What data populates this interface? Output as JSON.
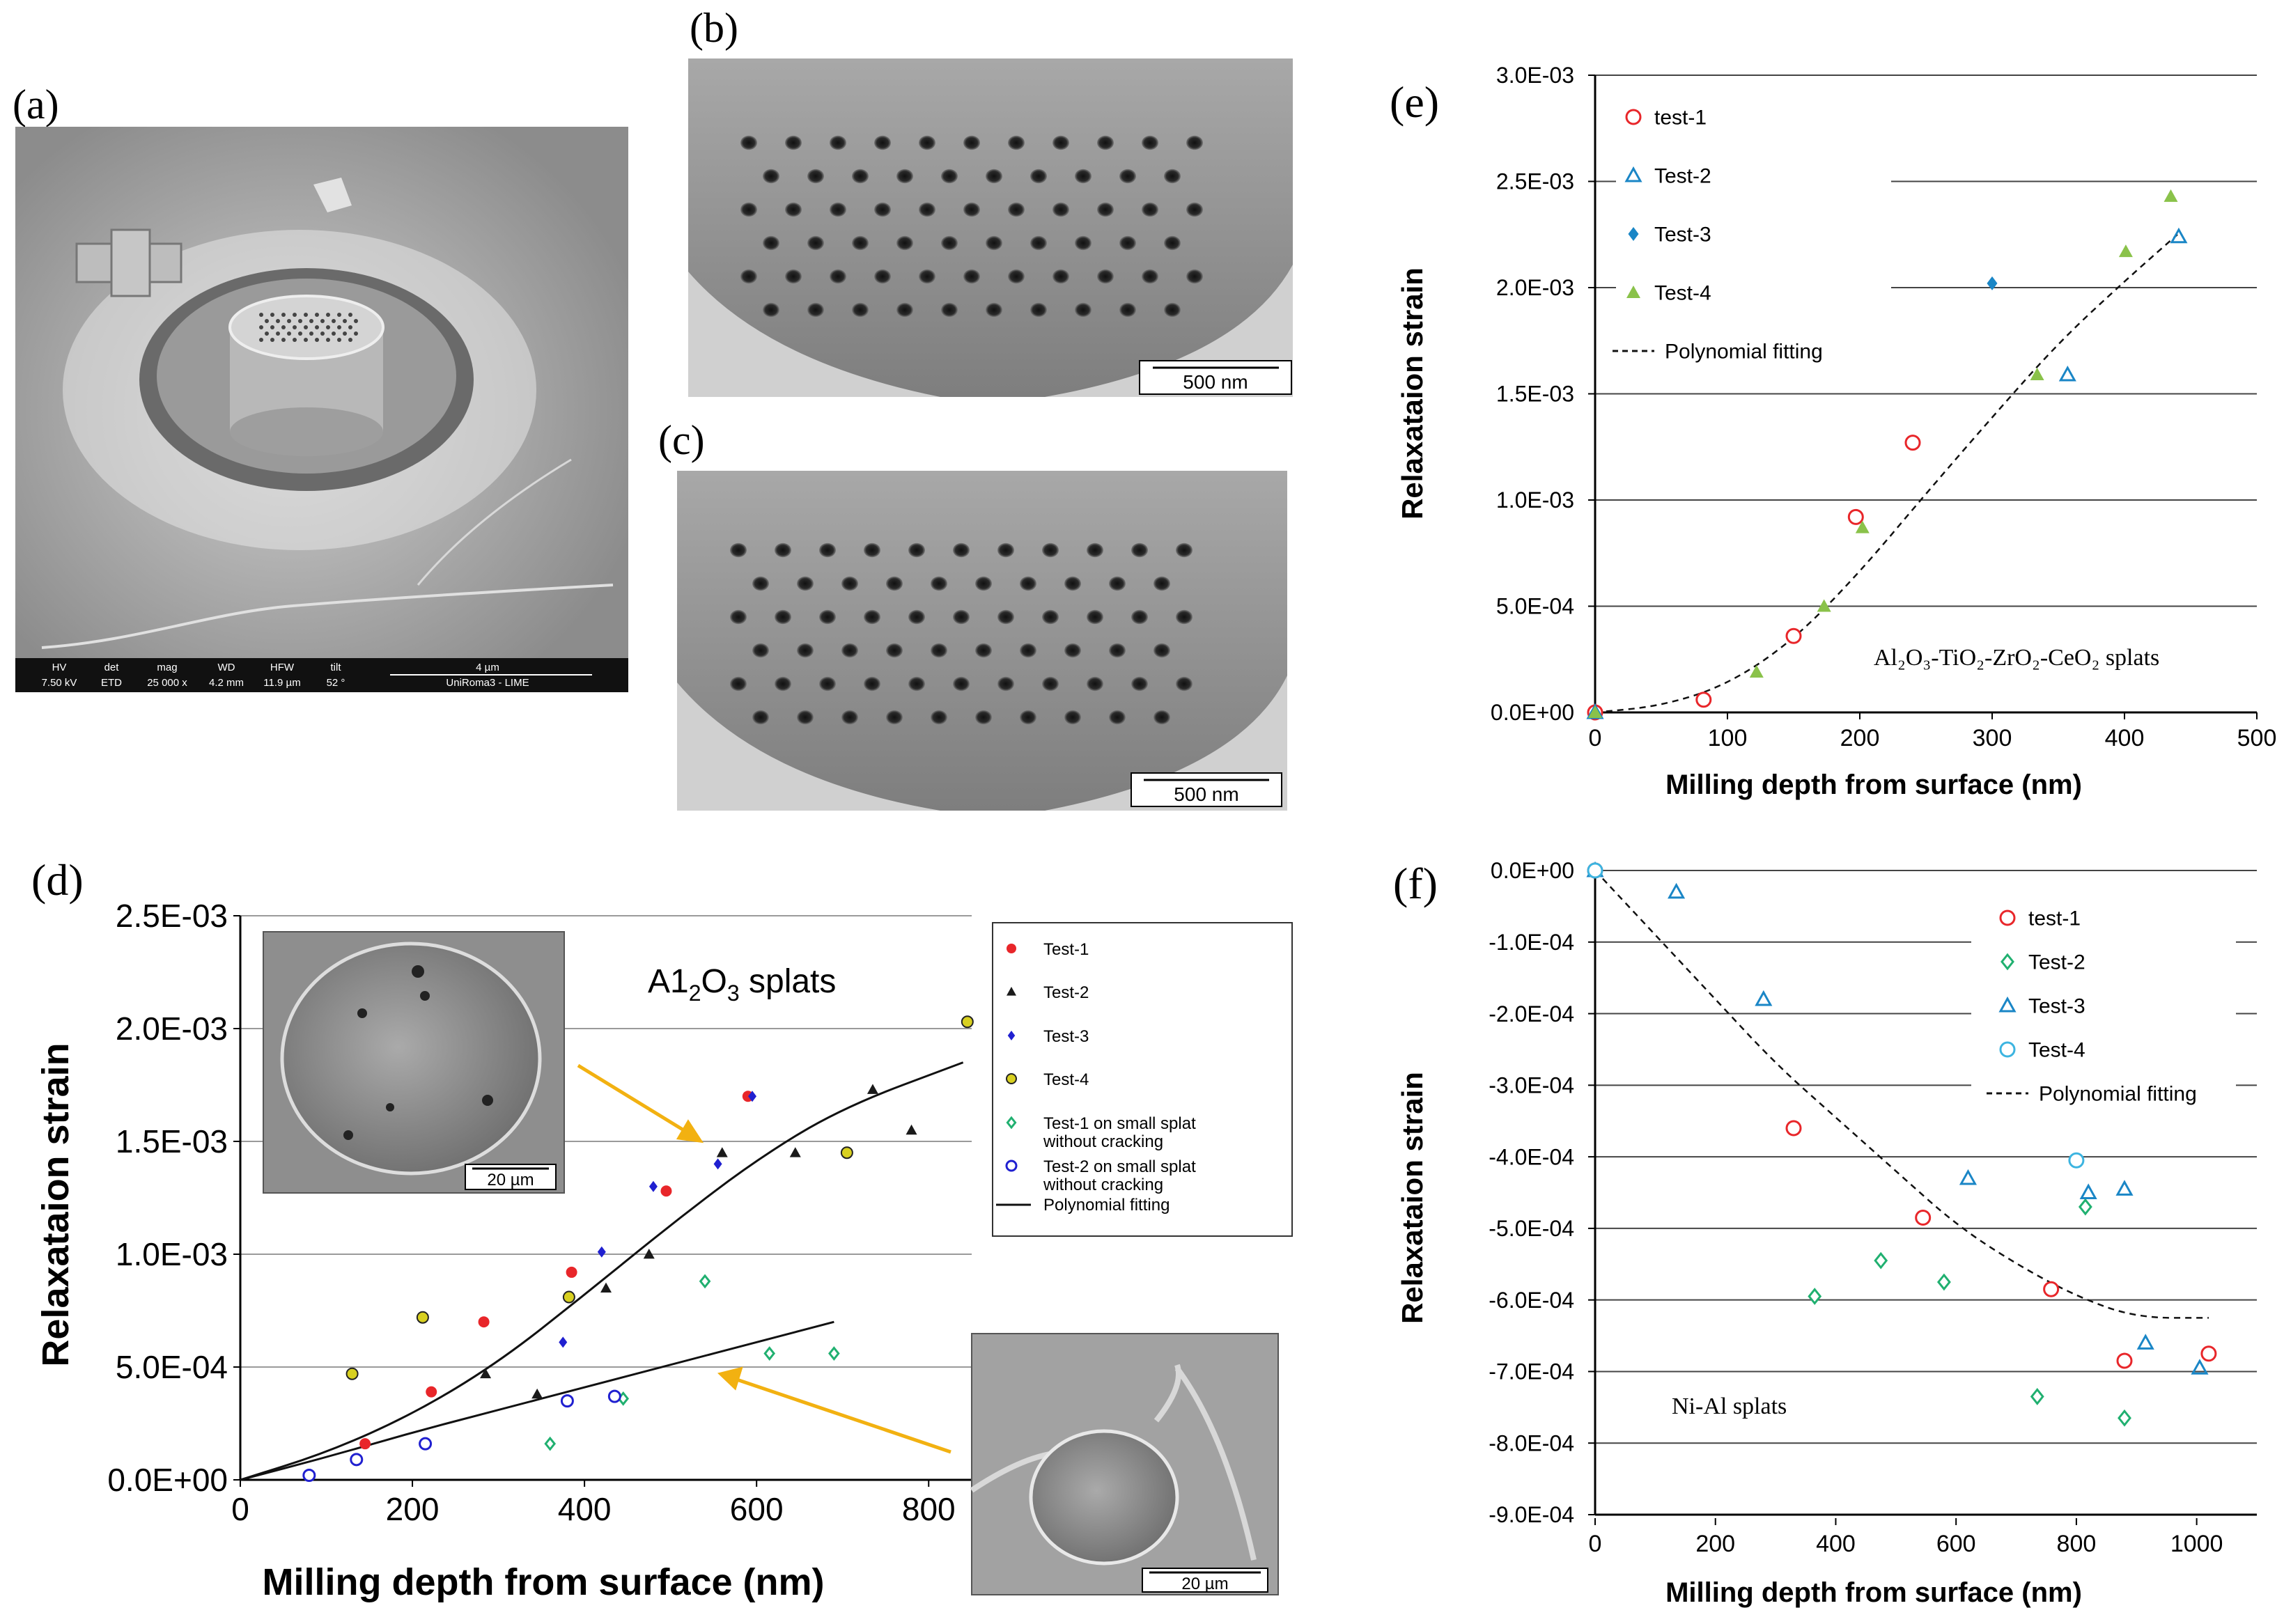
{
  "panels": {
    "a": {
      "letter": "(a)",
      "sem": {
        "hv_label": "HV",
        "hv": "7.50 kV",
        "det_label": "det",
        "det": "ETD",
        "mag_label": "mag",
        "mag": "25 000 x",
        "wd_label": "WD",
        "wd": "4.2 mm",
        "hfw_label": "HFW",
        "hfw": "11.9 µm",
        "tilt_label": "tilt",
        "tilt": "52 °",
        "scale": "4 µm",
        "lab": "UniRoma3 - LIME"
      }
    },
    "b": {
      "letter": "(b)",
      "scale": "500 nm"
    },
    "c": {
      "letter": "(c)",
      "scale": "500 nm"
    },
    "d": {
      "letter": "(d)",
      "title_pre": "A1",
      "title_sub": "2",
      "title_mid": "O",
      "title_sub2": "3",
      "title_post": " splats",
      "inset_top_scale": "20 µm",
      "inset_bottom_scale": "20 µm"
    },
    "e": {
      "letter": "(e)",
      "annotation": "Al₂O₃-TiO₂-ZrO₂-CeO₂ splats"
    },
    "f": {
      "letter": "(f)",
      "annotation": "Ni-Al splats"
    }
  },
  "colors": {
    "red": "#e8262a",
    "black": "#1a1a1a",
    "blue": "#2020d0",
    "yellow": "#d8d020",
    "green": "#20b070",
    "teal": "#1a86c6",
    "olive": "#8ac24a",
    "lightblue": "#3cb4e0"
  },
  "chart_data": [
    {
      "id": "d",
      "type": "scatter",
      "xlabel": "Milling depth from surface (nm)",
      "ylabel": "Relaxataion strain",
      "xlim": [
        0,
        850
      ],
      "ylim": [
        0,
        0.0025
      ],
      "grid": "horizontal",
      "legend_position": "right",
      "xticks": [
        "0",
        "200",
        "400",
        "600",
        "800"
      ],
      "yticks": [
        "0.0E+00",
        "5.0E-04",
        "1.0E-03",
        "1.5E-03",
        "2.0E-03",
        "2.5E-03"
      ],
      "series": [
        {
          "name": "Test-1",
          "marker": "dot",
          "color": "red",
          "points": [
            [
              145,
              0.00016
            ],
            [
              222,
              0.00039
            ],
            [
              283,
              0.0007
            ],
            [
              385,
              0.00092
            ],
            [
              495,
              0.00128
            ],
            [
              590,
              0.0017
            ]
          ]
        },
        {
          "name": "Test-2",
          "marker": "triangle-filled",
          "color": "black",
          "points": [
            [
              285,
              0.00047
            ],
            [
              345,
              0.00038
            ],
            [
              425,
              0.00085
            ],
            [
              475,
              0.001
            ],
            [
              560,
              0.00145
            ],
            [
              645,
              0.00145
            ],
            [
              735,
              0.00173
            ],
            [
              780,
              0.00155
            ]
          ]
        },
        {
          "name": "Test-3",
          "marker": "diamond-filled",
          "color": "blue",
          "points": [
            [
              375,
              0.00061
            ],
            [
              420,
              0.00101
            ],
            [
              480,
              0.0013
            ],
            [
              555,
              0.0014
            ],
            [
              595,
              0.0017
            ]
          ]
        },
        {
          "name": "Test-4",
          "marker": "circle-filled",
          "color": "yellow",
          "points": [
            [
              130,
              0.00047
            ],
            [
              212,
              0.00072
            ],
            [
              382,
              0.00081
            ],
            [
              705,
              0.00145
            ],
            [
              845,
              0.00203
            ]
          ]
        },
        {
          "name": "Test-1 on small splat without cracking",
          "marker": "diamond-open",
          "color": "green",
          "points": [
            [
              360,
              0.00016
            ],
            [
              445,
              0.00036
            ],
            [
              540,
              0.00088
            ],
            [
              615,
              0.00056
            ],
            [
              690,
              0.00056
            ]
          ]
        },
        {
          "name": "Test-2 on small splat without cracking",
          "marker": "circle-open",
          "color": "blue",
          "points": [
            [
              80,
              2e-05
            ],
            [
              135,
              9e-05
            ],
            [
              215,
              0.00016
            ],
            [
              380,
              0.00035
            ],
            [
              435,
              0.00037
            ]
          ]
        }
      ],
      "fits": [
        {
          "name": "Polynomial fitting",
          "style": "solid",
          "points": [
            [
              0,
              0
            ],
            [
              100,
              0.00012
            ],
            [
              200,
              0.00029
            ],
            [
              300,
              0.00052
            ],
            [
              400,
              0.00082
            ],
            [
              500,
              0.00113
            ],
            [
              600,
              0.00142
            ],
            [
              700,
              0.00165
            ],
            [
              840,
              0.00185
            ]
          ]
        },
        {
          "name": "",
          "style": "solid",
          "points": [
            [
              0,
              0
            ],
            [
              100,
              0.0001
            ],
            [
              200,
              0.00021
            ],
            [
              300,
              0.00031
            ],
            [
              400,
              0.00041
            ],
            [
              500,
              0.00051
            ],
            [
              600,
              0.00061
            ],
            [
              690,
              0.0007
            ]
          ]
        }
      ]
    },
    {
      "id": "e",
      "type": "scatter",
      "xlabel": "Milling  depth from surface (nm)",
      "ylabel": "Relaxataion strain",
      "xlim": [
        0,
        500
      ],
      "ylim": [
        0,
        0.003
      ],
      "grid": "horizontal",
      "legend_position": "top-left",
      "xticks": [
        "0",
        "100",
        "200",
        "300",
        "400",
        "500"
      ],
      "yticks": [
        "0.0E+00",
        "5.0E-04",
        "1.0E-03",
        "1.5E-03",
        "2.0E-03",
        "2.5E-03",
        "3.0E-03"
      ],
      "series": [
        {
          "name": "test-1",
          "marker": "circle-open",
          "color": "red",
          "points": [
            [
              0,
              0
            ],
            [
              82,
              6e-05
            ],
            [
              150,
              0.00036
            ],
            [
              197,
              0.00092
            ],
            [
              240,
              0.00127
            ]
          ]
        },
        {
          "name": "Test-2",
          "marker": "triangle-open",
          "color": "teal",
          "points": [
            [
              0,
              0
            ],
            [
              357,
              0.00159
            ],
            [
              441,
              0.00224
            ]
          ]
        },
        {
          "name": "Test-3",
          "marker": "diamond-filled",
          "color": "teal",
          "points": [
            [
              0,
              0
            ],
            [
              300,
              0.00202
            ]
          ]
        },
        {
          "name": "Test-4",
          "marker": "triangle-filled",
          "color": "olive",
          "points": [
            [
              0,
              0
            ],
            [
              122,
              0.00019
            ],
            [
              173,
              0.0005
            ],
            [
              202,
              0.00087
            ],
            [
              334,
              0.00159
            ],
            [
              401,
              0.00217
            ],
            [
              435,
              0.00243
            ]
          ]
        }
      ],
      "fits": [
        {
          "name": "Polynomial fitting",
          "style": "dashed",
          "points": [
            [
              0,
              0
            ],
            [
              50,
              3e-05
            ],
            [
              100,
              0.00013
            ],
            [
              150,
              0.00034
            ],
            [
              200,
              0.00066
            ],
            [
              250,
              0.00103
            ],
            [
              300,
              0.00139
            ],
            [
              350,
              0.00174
            ],
            [
              400,
              0.00203
            ],
            [
              440,
              0.00225
            ]
          ]
        }
      ]
    },
    {
      "id": "f",
      "type": "scatter",
      "xlabel": "Milling depth from surface (nm)",
      "ylabel": "Relaxataion strain",
      "xlim": [
        0,
        1100
      ],
      "ylim": [
        -0.0009,
        0
      ],
      "grid": "horizontal",
      "legend_position": "top-right",
      "xticks": [
        "0",
        "200",
        "400",
        "600",
        "800",
        "1000"
      ],
      "yticks": [
        "0.0E+00",
        "-1.0E-04",
        "-2.0E-04",
        "-3.0E-04",
        "-4.0E-04",
        "-5.0E-04",
        "-6.0E-04",
        "-7.0E-04",
        "-8.0E-04",
        "-9.0E-04"
      ],
      "series": [
        {
          "name": "test-1",
          "marker": "circle-open",
          "color": "red",
          "points": [
            [
              0,
              0
            ],
            [
              330,
              -0.00036
            ],
            [
              545,
              -0.000485
            ],
            [
              758,
              -0.000585
            ],
            [
              880,
              -0.000685
            ],
            [
              1020,
              -0.000675
            ]
          ]
        },
        {
          "name": "Test-2",
          "marker": "diamond-open",
          "color": "green",
          "points": [
            [
              365,
              -0.000595
            ],
            [
              475,
              -0.000545
            ],
            [
              580,
              -0.000575
            ],
            [
              735,
              -0.000735
            ],
            [
              815,
              -0.00047
            ],
            [
              880,
              -0.000765
            ]
          ]
        },
        {
          "name": "Test-3",
          "marker": "triangle-open",
          "color": "teal",
          "points": [
            [
              0,
              0
            ],
            [
              135,
              -3e-05
            ],
            [
              280,
              -0.00018
            ],
            [
              620,
              -0.00043
            ],
            [
              820,
              -0.00045
            ],
            [
              880,
              -0.000445
            ],
            [
              915,
              -0.00066
            ],
            [
              1005,
              -0.000695
            ]
          ]
        },
        {
          "name": "Test-4",
          "marker": "circle-open",
          "color": "lightblue",
          "points": [
            [
              0,
              0
            ],
            [
              800,
              -0.000405
            ]
          ]
        }
      ],
      "fits": [
        {
          "name": "Polynomial fitting",
          "style": "dashed",
          "points": [
            [
              0,
              0
            ],
            [
              100,
              -9e-05
            ],
            [
              200,
              -0.00018
            ],
            [
              300,
              -0.00027
            ],
            [
              400,
              -0.000345
            ],
            [
              500,
              -0.00042
            ],
            [
              600,
              -0.000495
            ],
            [
              700,
              -0.00055
            ],
            [
              800,
              -0.000595
            ],
            [
              900,
              -0.000625
            ],
            [
              1020,
              -0.000625
            ]
          ]
        }
      ]
    }
  ]
}
